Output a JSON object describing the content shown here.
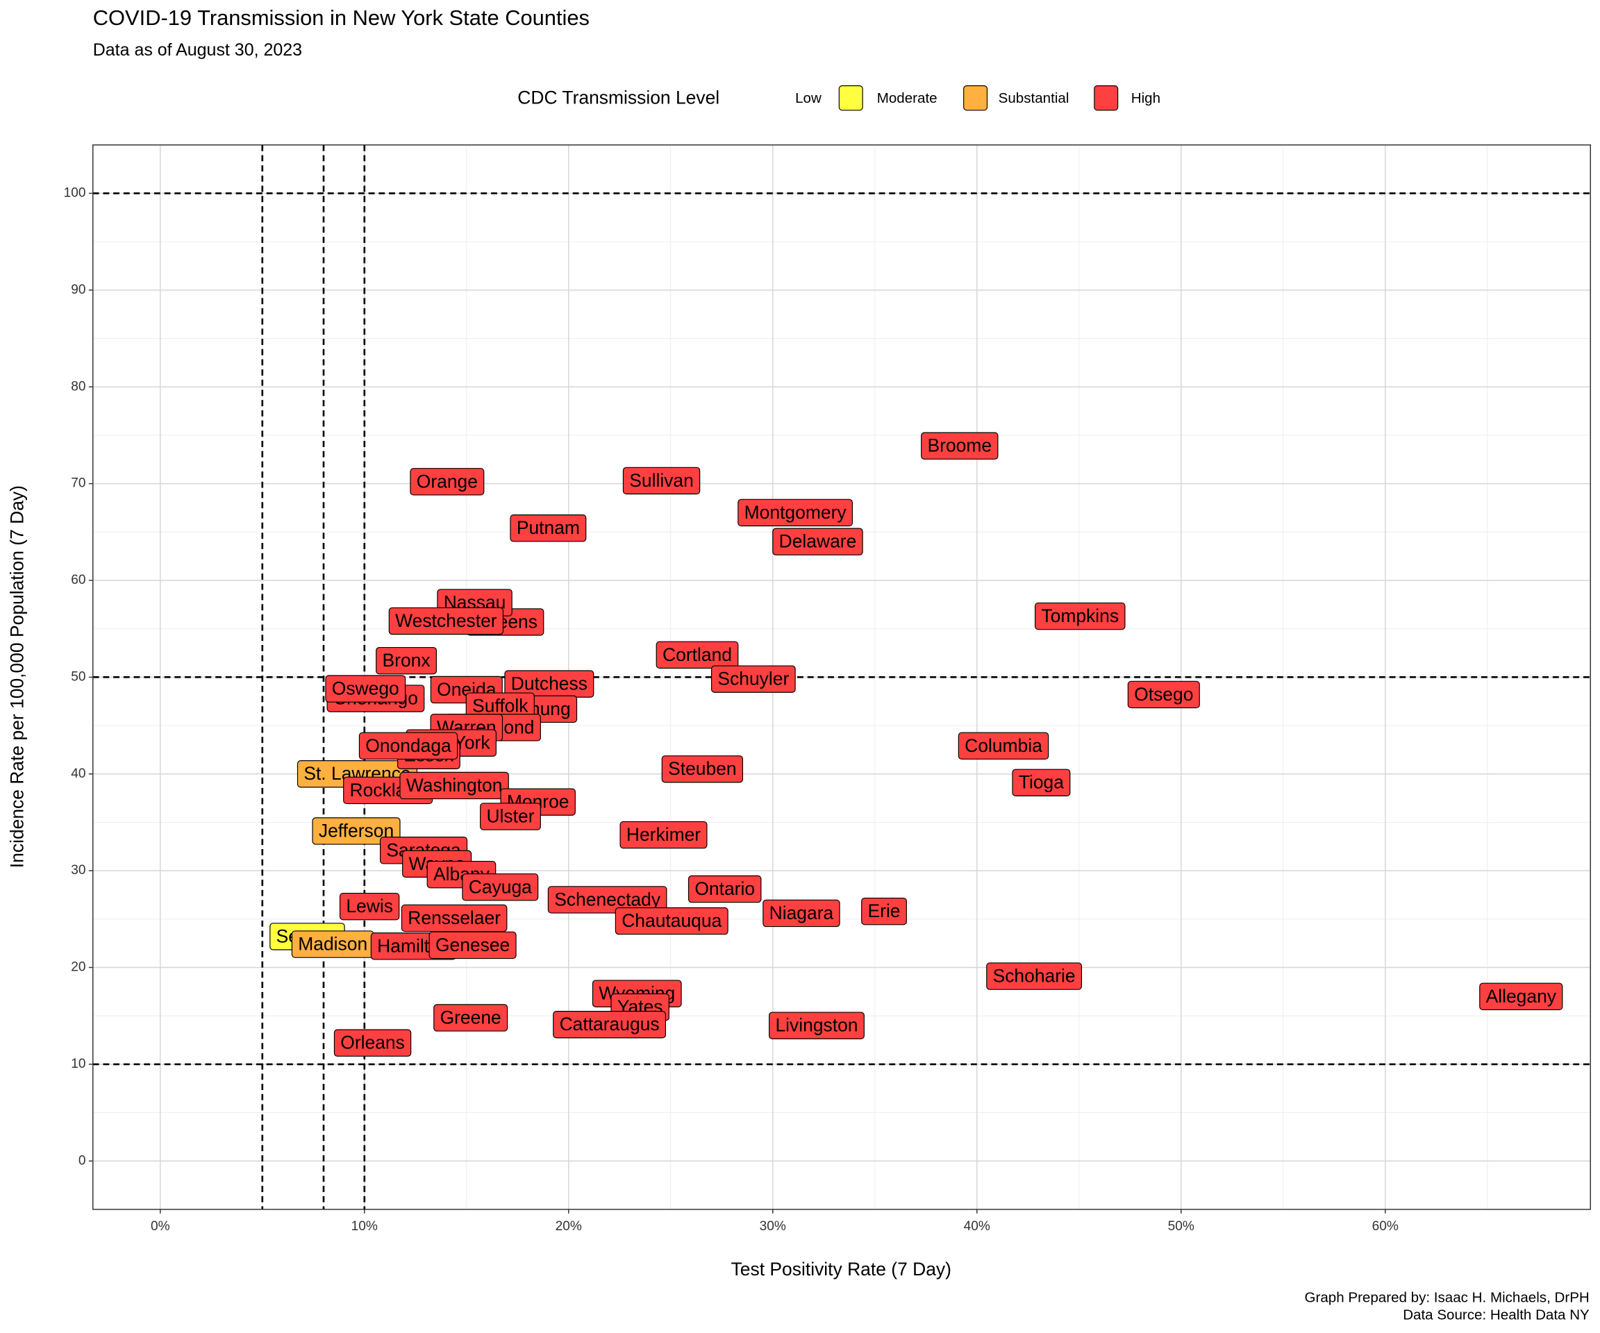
{
  "chart_data": {
    "type": "scatter",
    "title": "COVID-19 Transmission in New York State Counties",
    "subtitle": "Data as of August 30, 2023",
    "x_label": "Test Positivity Rate (7 Day)",
    "y_label": "Incidence Rate per 100,000 Population (7 Day)",
    "legend_title": "CDC Transmission Level",
    "caption": [
      "Graph Prepared by: Isaac H. Michaels, DrPH",
      "Data Source: Health Data NY"
    ],
    "xlim": [
      -3.3,
      70.05
    ],
    "ylim": [
      -5,
      105
    ],
    "xticks": [
      {
        "value": 0,
        "label": "0%"
      },
      {
        "value": 10,
        "label": "10%"
      },
      {
        "value": 20,
        "label": "20%"
      },
      {
        "value": 30,
        "label": "30%"
      },
      {
        "value": 40,
        "label": "40%"
      },
      {
        "value": 50,
        "label": "50%"
      },
      {
        "value": 60,
        "label": "60%"
      }
    ],
    "yticks": [
      0,
      10,
      20,
      30,
      40,
      50,
      60,
      70,
      80,
      90,
      100
    ],
    "x_minor_grid": [
      5,
      15,
      25,
      35,
      45,
      55,
      65
    ],
    "y_minor_grid": [
      5,
      15,
      25,
      35,
      45,
      55,
      65,
      75,
      85,
      95
    ],
    "grid": true,
    "reference_lines": {
      "x": [
        5,
        8,
        10
      ],
      "y": [
        10,
        50,
        100
      ]
    },
    "series": [
      {
        "name": "Low",
        "labels": [],
        "x": [],
        "values": []
      },
      {
        "name": "Moderate",
        "color": "#ffff40",
        "labels": [
          "Seneca"
        ],
        "x": [
          7.2
        ],
        "values": [
          23.2
        ]
      },
      {
        "name": "Substantial",
        "color": "#ffb040",
        "labels": [
          "St. Lawrence",
          "Jefferson",
          "Madison"
        ],
        "x": [
          9.65,
          9.6,
          8.45
        ],
        "values": [
          40.0,
          34.1,
          22.4
        ]
      },
      {
        "name": "High",
        "color": "#ff4040",
        "labels": [
          "Broome",
          "Orange",
          "Sullivan",
          "Montgomery",
          "Putnam",
          "Delaware",
          "Queens",
          "Nassau",
          "Westchester",
          "Tompkins",
          "Cortland",
          "Bronx",
          "Schuyler",
          "Dutchess",
          "Chenango",
          "Oswego",
          "Oneida",
          "Otsego",
          "Chemung",
          "Suffolk",
          "Richmond",
          "Warren",
          "New York",
          "Essex",
          "Onondaga",
          "Columbia",
          "Steuben",
          "Tioga",
          "Rockland",
          "Washington",
          "Monroe",
          "Ulster",
          "Herkimer",
          "Saratoga",
          "Wayne",
          "Albany",
          "Cayuga",
          "Ontario",
          "Schenectady",
          "Erie",
          "Niagara",
          "Lewis",
          "Rensselaer",
          "Chautauqua",
          "Hamilton",
          "Genesee",
          "Schoharie",
          "Allegany",
          "Wyoming",
          "Yates",
          "Greene",
          "Cattaraugus",
          "Livingston",
          "Orleans"
        ],
        "x": [
          39.15,
          14.05,
          24.55,
          31.1,
          19.0,
          32.2,
          16.9,
          15.4,
          14.0,
          45.05,
          26.3,
          12.05,
          29.05,
          19.05,
          10.55,
          10.05,
          15.0,
          49.15,
          18.15,
          16.65,
          16.3,
          15.0,
          14.25,
          13.15,
          12.15,
          41.3,
          26.55,
          43.15,
          11.15,
          14.4,
          18.5,
          17.15,
          24.65,
          12.9,
          13.55,
          14.75,
          16.65,
          27.65,
          21.9,
          35.45,
          31.4,
          10.25,
          14.4,
          25.05,
          12.4,
          15.3,
          42.8,
          66.65,
          23.35,
          23.5,
          15.2,
          22.0,
          32.15,
          10.4
        ],
        "values": [
          73.9,
          70.2,
          70.3,
          67.0,
          65.4,
          64.0,
          55.7,
          57.7,
          55.8,
          56.3,
          52.3,
          51.7,
          49.8,
          49.3,
          47.8,
          48.8,
          48.7,
          48.2,
          46.7,
          47.0,
          44.8,
          44.8,
          43.2,
          41.9,
          42.9,
          42.9,
          40.5,
          39.1,
          38.3,
          38.8,
          37.1,
          35.6,
          33.7,
          32.1,
          30.7,
          29.6,
          28.3,
          28.1,
          27.0,
          25.8,
          25.6,
          26.3,
          25.1,
          24.8,
          22.2,
          22.3,
          19.1,
          17.0,
          17.3,
          15.9,
          14.8,
          14.1,
          14.0,
          12.2
        ]
      }
    ]
  }
}
